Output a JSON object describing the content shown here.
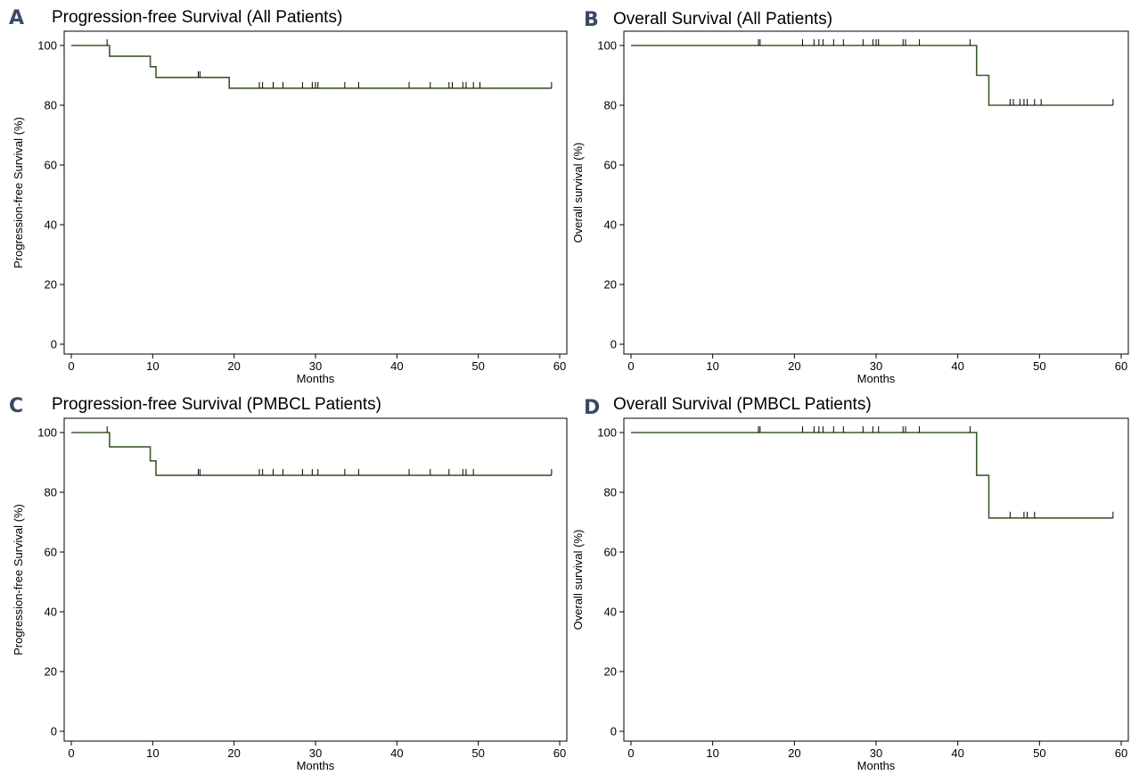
{
  "colors": {
    "curve": "#3d5b2e",
    "frame": "#000000",
    "letter": "#3a4a66"
  },
  "chart_data": [
    {
      "type": "line",
      "letter": "A",
      "title": "Progression-free Survival (All Patients)",
      "xlabel": "Months",
      "ylabel": "Progression-free Survival (%)",
      "xlim": [
        0,
        60
      ],
      "ylim": [
        0,
        100
      ],
      "xticks": [
        0,
        10,
        20,
        30,
        40,
        50,
        60
      ],
      "yticks": [
        0,
        20,
        40,
        60,
        80,
        100
      ],
      "grid": false,
      "series": [
        {
          "steps": [
            [
              0,
              100
            ],
            [
              4.7,
              96.4
            ],
            [
              9.7,
              92.9
            ],
            [
              10.4,
              89.3
            ],
            [
              19.4,
              85.7
            ]
          ],
          "end_x": 59,
          "censored": [
            4.4,
            15.6,
            15.8,
            23.1,
            23.5,
            24.8,
            26,
            28.4,
            29.6,
            30,
            30.3,
            33.6,
            35.3,
            41.5,
            44.1,
            46.4,
            46.8,
            48.1,
            48.5,
            49.4,
            50.2,
            59
          ]
        }
      ]
    },
    {
      "type": "line",
      "letter": "B",
      "title": "Overall Survival (All Patients)",
      "xlabel": "Months",
      "ylabel": "Overall survival (%)",
      "xlim": [
        0,
        60
      ],
      "ylim": [
        0,
        100
      ],
      "xticks": [
        0,
        10,
        20,
        30,
        40,
        50,
        60
      ],
      "yticks": [
        0,
        20,
        40,
        60,
        80,
        100
      ],
      "grid": false,
      "series": [
        {
          "steps": [
            [
              0,
              100
            ],
            [
              42.3,
              90
            ],
            [
              43.8,
              80
            ]
          ],
          "end_x": 59,
          "censored": [
            15.6,
            15.8,
            21,
            22.4,
            23,
            23.5,
            24.8,
            26,
            28.4,
            29.6,
            30,
            30.3,
            33.3,
            33.6,
            35.3,
            41.5,
            46.4,
            46.8,
            47.6,
            48.1,
            48.5,
            49.4,
            50.2,
            59
          ]
        }
      ]
    },
    {
      "type": "line",
      "letter": "C",
      "title": "Progression-free Survival (PMBCL Patients)",
      "xlabel": "Months",
      "ylabel": "Progression-free Survival (%)",
      "xlim": [
        0,
        60
      ],
      "ylim": [
        0,
        100
      ],
      "xticks": [
        0,
        10,
        20,
        30,
        40,
        50,
        60
      ],
      "yticks": [
        0,
        20,
        40,
        60,
        80,
        100
      ],
      "grid": false,
      "series": [
        {
          "steps": [
            [
              0,
              100
            ],
            [
              4.7,
              95.2
            ],
            [
              9.7,
              90.5
            ],
            [
              10.4,
              85.7
            ]
          ],
          "end_x": 59,
          "censored": [
            4.4,
            15.6,
            15.8,
            23.1,
            23.5,
            24.8,
            26,
            28.4,
            29.6,
            30.3,
            33.6,
            35.3,
            41.5,
            44.1,
            46.4,
            48.1,
            48.5,
            49.4,
            59
          ]
        }
      ]
    },
    {
      "type": "line",
      "letter": "D",
      "title": "Overall Survival (PMBCL Patients)",
      "xlabel": "Months",
      "ylabel": "Overall survival (%)",
      "xlim": [
        0,
        60
      ],
      "ylim": [
        0,
        100
      ],
      "xticks": [
        0,
        10,
        20,
        30,
        40,
        50,
        60
      ],
      "yticks": [
        0,
        20,
        40,
        60,
        80,
        100
      ],
      "grid": false,
      "series": [
        {
          "steps": [
            [
              0,
              100
            ],
            [
              42.3,
              85.7
            ],
            [
              43.8,
              71.4
            ]
          ],
          "end_x": 59,
          "censored": [
            15.6,
            15.8,
            21,
            22.4,
            23,
            23.5,
            24.8,
            26,
            28.4,
            29.6,
            30.3,
            33.3,
            33.6,
            35.3,
            41.5,
            46.4,
            48.1,
            48.5,
            49.4,
            59
          ]
        }
      ]
    }
  ]
}
